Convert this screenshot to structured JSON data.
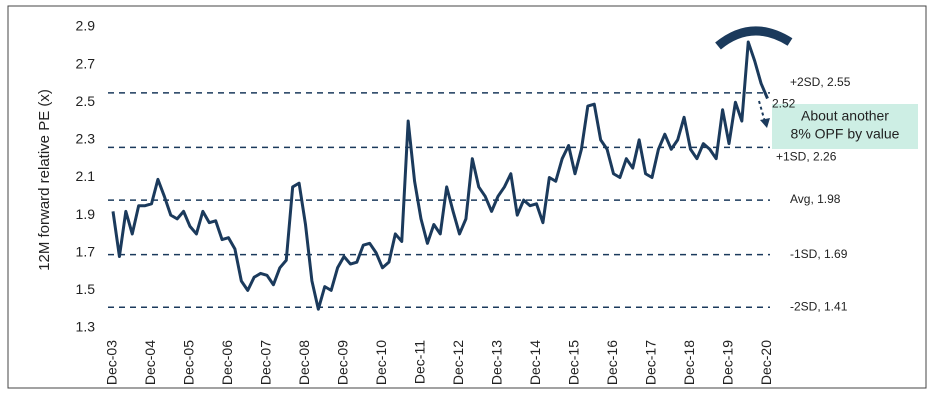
{
  "chart_data": {
    "type": "line",
    "y_label": "12M forward relative PE (x)",
    "categories": [
      "Dec-03",
      null,
      null,
      null,
      null,
      null,
      "Dec-04",
      null,
      null,
      null,
      null,
      null,
      "Dec-05",
      null,
      null,
      null,
      null,
      null,
      "Dec-06",
      null,
      null,
      null,
      null,
      null,
      "Dec-07",
      null,
      null,
      null,
      null,
      null,
      "Dec-08",
      null,
      null,
      null,
      null,
      null,
      "Dec-09",
      null,
      null,
      null,
      null,
      null,
      "Dec-10",
      null,
      null,
      null,
      null,
      null,
      "Dec-11",
      null,
      null,
      null,
      null,
      null,
      "Dec-12",
      null,
      null,
      null,
      null,
      null,
      "Dec-13",
      null,
      null,
      null,
      null,
      null,
      "Dec-14",
      null,
      null,
      null,
      null,
      null,
      "Dec-15",
      null,
      null,
      null,
      null,
      null,
      "Dec-16",
      null,
      null,
      null,
      null,
      null,
      "Dec-17",
      null,
      null,
      null,
      null,
      null,
      "Dec-18",
      null,
      null,
      null,
      null,
      null,
      "Dec-19",
      null,
      null,
      null,
      null,
      null,
      "Dec-20"
    ],
    "series": [
      {
        "name": "12M forward relative PE",
        "color": "#1b3a5c",
        "values": [
          1.92,
          1.68,
          1.92,
          1.8,
          1.95,
          1.95,
          1.96,
          2.09,
          2.0,
          1.9,
          1.88,
          1.92,
          1.84,
          1.8,
          1.92,
          1.86,
          1.87,
          1.77,
          1.78,
          1.72,
          1.55,
          1.5,
          1.57,
          1.59,
          1.58,
          1.53,
          1.62,
          1.66,
          2.05,
          2.07,
          1.85,
          1.55,
          1.4,
          1.52,
          1.5,
          1.62,
          1.68,
          1.64,
          1.65,
          1.74,
          1.75,
          1.7,
          1.62,
          1.65,
          1.8,
          1.76,
          2.4,
          2.08,
          1.88,
          1.75,
          1.85,
          1.8,
          2.05,
          1.92,
          1.8,
          1.88,
          2.2,
          2.05,
          2.0,
          1.92,
          2.0,
          2.05,
          2.12,
          1.9,
          1.98,
          1.95,
          1.96,
          1.86,
          2.1,
          2.08,
          2.2,
          2.27,
          2.12,
          2.25,
          2.48,
          2.49,
          2.3,
          2.25,
          2.12,
          2.1,
          2.2,
          2.15,
          2.3,
          2.12,
          2.1,
          2.25,
          2.33,
          2.25,
          2.3,
          2.42,
          2.25,
          2.2,
          2.28,
          2.25,
          2.2,
          2.46,
          2.28,
          2.5,
          2.4,
          2.82,
          2.72,
          2.6,
          2.52
        ]
      }
    ],
    "ylim": [
      1.3,
      2.9
    ],
    "yticks": [
      1.3,
      1.5,
      1.7,
      1.9,
      2.1,
      2.3,
      2.5,
      2.7,
      2.9
    ],
    "grid": false,
    "reference_lines": [
      {
        "label": "+2SD, 2.55",
        "value": 2.55
      },
      {
        "label": "+1SD, 2.26",
        "value": 2.26
      },
      {
        "label": "Avg, 1.98",
        "value": 1.98
      },
      {
        "label": "-1SD, 1.69",
        "value": 1.69
      },
      {
        "label": "-2SD, 1.41",
        "value": 1.41
      }
    ],
    "end_label": "2.52",
    "annotation_box": [
      "About another",
      "8% OPF by value"
    ]
  }
}
